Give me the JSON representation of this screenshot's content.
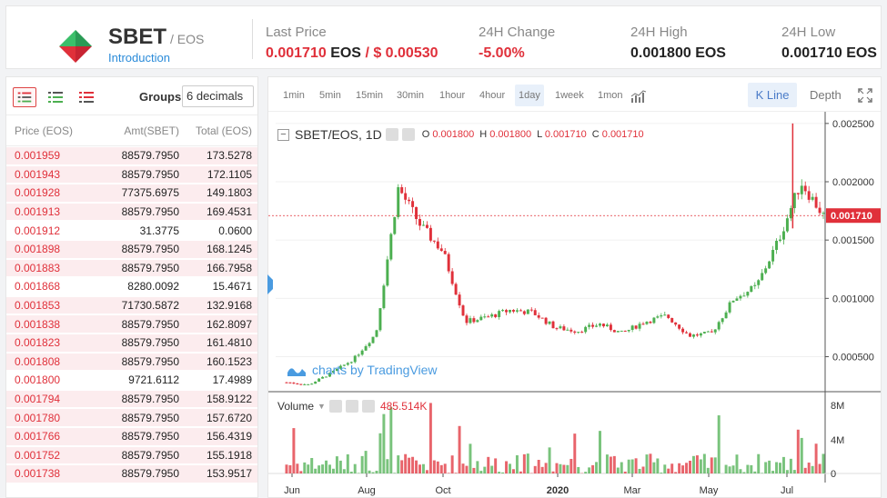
{
  "header": {
    "symbol": "SBET",
    "quote": "/ EOS",
    "intro": "Introduction",
    "last_price_label": "Last Price",
    "last_price": "0.001710",
    "last_price_unit": "EOS",
    "last_price_usd": "/ $ 0.00530",
    "change_label": "24H Change",
    "change": "-5.00%",
    "high_label": "24H High",
    "high": "0.001800",
    "high_unit": "EOS",
    "low_label": "24H Low",
    "low": "0.001710",
    "low_unit": "EOS"
  },
  "orderbook": {
    "groups_label": "Groups",
    "groups_value": "6 decimals",
    "columns": [
      "Price (EOS)",
      "Amt(SBET)",
      "Total (EOS)"
    ],
    "rows": [
      {
        "price": "0.001959",
        "amt": "88579.7950",
        "total": "173.5278",
        "depth": 1.0
      },
      {
        "price": "0.001943",
        "amt": "88579.7950",
        "total": "172.1105",
        "depth": 1.0
      },
      {
        "price": "0.001928",
        "amt": "77375.6975",
        "total": "149.1803",
        "depth": 1.0
      },
      {
        "price": "0.001913",
        "amt": "88579.7950",
        "total": "169.4531",
        "depth": 1.0
      },
      {
        "price": "0.001912",
        "amt": "31.3775",
        "total": "0.0600",
        "depth": 0.0
      },
      {
        "price": "0.001898",
        "amt": "88579.7950",
        "total": "168.1245",
        "depth": 1.0
      },
      {
        "price": "0.001883",
        "amt": "88579.7950",
        "total": "166.7958",
        "depth": 1.0
      },
      {
        "price": "0.001868",
        "amt": "8280.0092",
        "total": "15.4671",
        "depth": 0.0
      },
      {
        "price": "0.001853",
        "amt": "71730.5872",
        "total": "132.9168",
        "depth": 1.0
      },
      {
        "price": "0.001838",
        "amt": "88579.7950",
        "total": "162.8097",
        "depth": 1.0
      },
      {
        "price": "0.001823",
        "amt": "88579.7950",
        "total": "161.4810",
        "depth": 1.0
      },
      {
        "price": "0.001808",
        "amt": "88579.7950",
        "total": "160.1523",
        "depth": 1.0
      },
      {
        "price": "0.001800",
        "amt": "9721.6112",
        "total": "17.4989",
        "depth": 0.0
      },
      {
        "price": "0.001794",
        "amt": "88579.7950",
        "total": "158.9122",
        "depth": 1.0
      },
      {
        "price": "0.001780",
        "amt": "88579.7950",
        "total": "157.6720",
        "depth": 1.0
      },
      {
        "price": "0.001766",
        "amt": "88579.7950",
        "total": "156.4319",
        "depth": 1.0
      },
      {
        "price": "0.001752",
        "amt": "88579.7950",
        "total": "155.1918",
        "depth": 1.0
      },
      {
        "price": "0.001738",
        "amt": "88579.7950",
        "total": "153.9517",
        "depth": 1.0
      }
    ]
  },
  "toolbar": {
    "timeframes": [
      "1min",
      "5min",
      "15min",
      "30min",
      "1hour",
      "4hour",
      "1day",
      "1week",
      "1mon"
    ],
    "active_timeframe": "1day",
    "kline": "K Line",
    "depth": "Depth"
  },
  "chart": {
    "symbol_label": "SBET/EOS, 1D",
    "ohlc": {
      "o": "0.001800",
      "h": "0.001800",
      "l": "0.001710",
      "c": "0.001710"
    },
    "volume_label": "Volume",
    "volume_value": "485.514K",
    "watermark": "charts by TradingView",
    "current_price_tag": "0.001710",
    "colors": {
      "up": "#4caf50",
      "down": "#e0303a"
    }
  },
  "chart_data": {
    "type": "line",
    "x": [
      "2019-06",
      "2019-07",
      "2019-08",
      "2019-09",
      "2019-10",
      "2019-10-20",
      "2019-11",
      "2019-11-15",
      "2019-12",
      "2019-12-15",
      "2020-01",
      "2020-01-15",
      "2020-02",
      "2020-02-15",
      "2020-03",
      "2020-03-15",
      "2020-04",
      "2020-04-15",
      "2020-05",
      "2020-05-15",
      "2020-06",
      "2020-06-15",
      "2020-07",
      "2020-07-05",
      "2020-07-15"
    ],
    "series": [
      {
        "values": [
          0.00028,
          0.00026,
          0.00036,
          0.00048,
          0.0007,
          0.00195,
          0.00162,
          0.0014,
          0.0008,
          0.00084,
          0.0009,
          0.00088,
          0.00075,
          0.00072,
          0.00078,
          0.0007,
          0.0008,
          0.00085,
          0.00068,
          0.0007,
          0.001,
          0.0011,
          0.0015,
          0.002,
          0.00171
        ]
      }
    ],
    "y_ticks": [
      "0.000500",
      "0.001000",
      "0.001500",
      "0.002000",
      "0.002500"
    ],
    "x_ticks": [
      "Jun",
      "Aug",
      "Oct",
      "2020",
      "Mar",
      "May",
      "Jul"
    ],
    "ylim": [
      0.0002,
      0.0026
    ],
    "volume_ticks": [
      "0",
      "4M",
      "8M"
    ]
  }
}
